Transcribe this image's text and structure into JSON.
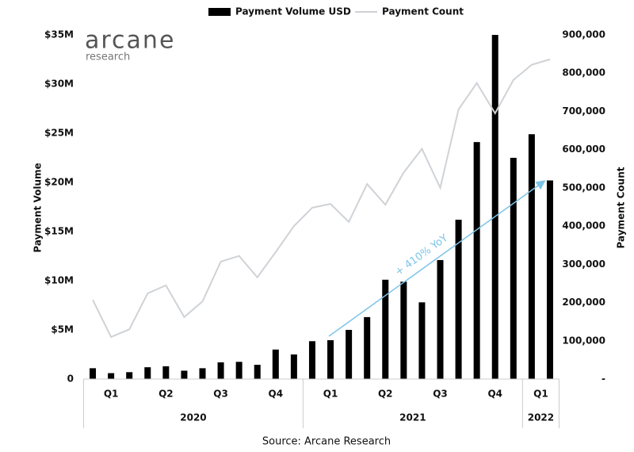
{
  "chart_data": {
    "type": "bar_line",
    "logo": "arcane",
    "logo_sub": "research",
    "y_label": "Payment Volume",
    "y2_label": "Payment Count",
    "source": "Source: Arcane Research",
    "annotation": "+ 410% YoY",
    "categories": [
      null,
      null,
      null,
      null,
      null,
      null,
      null,
      null,
      null,
      null,
      null,
      null,
      null,
      null,
      null,
      null,
      null,
      null,
      null,
      null,
      null,
      null,
      null,
      null,
      null,
      null
    ],
    "quarters": [
      {
        "label": "Q1",
        "months": 3
      },
      {
        "label": "Q2",
        "months": 3
      },
      {
        "label": "Q3",
        "months": 3
      },
      {
        "label": "Q4",
        "months": 3
      },
      {
        "label": "Q1",
        "months": 3
      },
      {
        "label": "Q2",
        "months": 3
      },
      {
        "label": "Q3",
        "months": 3
      },
      {
        "label": "Q4",
        "months": 3
      },
      {
        "label": "Q1",
        "months": 2
      }
    ],
    "years": [
      {
        "label": "2020",
        "quarters": 4
      },
      {
        "label": "2021",
        "quarters": 4
      },
      {
        "label": "2022",
        "quarters": 1
      }
    ],
    "series": [
      {
        "name": "Payment Volume USD",
        "color": "#000000",
        "type": "bar",
        "values": [
          1100000,
          600000,
          700000,
          1200000,
          1300000,
          850000,
          1100000,
          1700000,
          1750000,
          1450000,
          3000000,
          2500000,
          3850000,
          3950000,
          5000000,
          6300000,
          10100000,
          9900000,
          7800000,
          12100000,
          16200000,
          24100000,
          35000000,
          22500000,
          24900000,
          20200000
        ]
      },
      {
        "name": "Payment Count",
        "color": "#cfd2d6",
        "type": "line",
        "axis": "y2",
        "values": [
          207000,
          110000,
          130000,
          224000,
          245000,
          162000,
          203000,
          307000,
          322000,
          266000,
          332000,
          400000,
          448000,
          458000,
          411000,
          510000,
          456000,
          540000,
          602000,
          500000,
          705000,
          774000,
          695000,
          782000,
          822000,
          836000
        ]
      }
    ],
    "ylim": [
      0,
      35000000
    ],
    "yticks": [
      {
        "value": 0,
        "label": "0"
      },
      {
        "value": 5000000,
        "label": "$5M"
      },
      {
        "value": 10000000,
        "label": "$10M"
      },
      {
        "value": 15000000,
        "label": "$15M"
      },
      {
        "value": 20000000,
        "label": "$20M"
      },
      {
        "value": 25000000,
        "label": "$25M"
      },
      {
        "value": 30000000,
        "label": "$30M"
      },
      {
        "value": 35000000,
        "label": "$35M"
      }
    ],
    "y2lim": [
      0,
      900000
    ],
    "y2ticks": [
      {
        "value": 0,
        "label": "-"
      },
      {
        "value": 100000,
        "label": "100,000"
      },
      {
        "value": 200000,
        "label": "200,000"
      },
      {
        "value": 300000,
        "label": "300,000"
      },
      {
        "value": 400000,
        "label": "400,000"
      },
      {
        "value": 500000,
        "label": "500,000"
      },
      {
        "value": 600000,
        "label": "600,000"
      },
      {
        "value": 700000,
        "label": "700,000"
      },
      {
        "value": 800000,
        "label": "800,000"
      },
      {
        "value": 900000,
        "label": "900,000"
      }
    ],
    "annotation_color": "#7cc4e8"
  }
}
